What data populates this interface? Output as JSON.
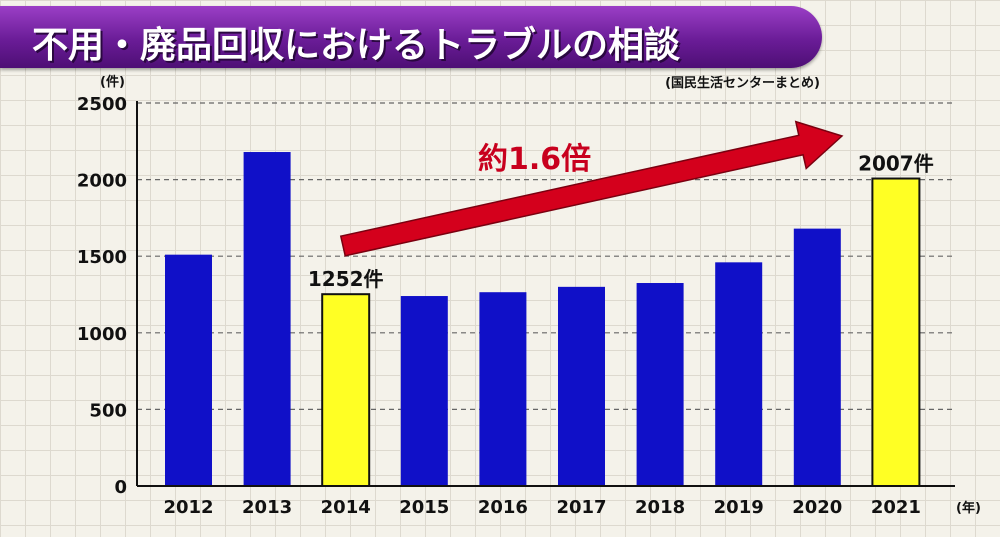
{
  "title": "不用・廃品回収におけるトラブルの相談",
  "source": "(国民生活センターまとめ)",
  "colors": {
    "bar": "#1010c8",
    "highlight": "#ffff24",
    "arrow": "#d4001c",
    "banner": "#6a1c97"
  },
  "chart_data": {
    "type": "bar",
    "categories": [
      "2012",
      "2013",
      "2014",
      "2015",
      "2016",
      "2017",
      "2018",
      "2019",
      "2020",
      "2021"
    ],
    "values": [
      1510,
      2180,
      1252,
      1240,
      1265,
      1300,
      1325,
      1460,
      1680,
      2007
    ],
    "highlighted": [
      "2014",
      "2021"
    ],
    "y_unit": "(件)",
    "x_unit": "(年)",
    "ylim": [
      0,
      2500
    ],
    "yticks": [
      0,
      500,
      1000,
      1500,
      2000,
      2500
    ],
    "grid": true,
    "data_labels": [
      {
        "category": "2014",
        "text": "1252件"
      },
      {
        "category": "2021",
        "text": "2007件"
      }
    ],
    "annotation": {
      "text": "約1.6倍",
      "from": "2014",
      "to": "2021"
    }
  }
}
